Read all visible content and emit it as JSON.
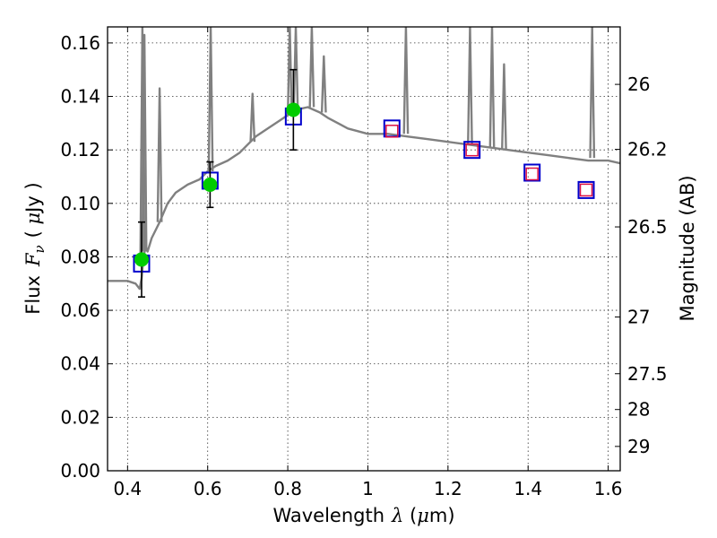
{
  "chart_data": {
    "type": "scatter",
    "title": "",
    "xlabel": {
      "prefix": "Wavelength",
      "symbol": "λ",
      "unit_open": " (",
      "unit_mu": "μ",
      "unit_rest": "m)"
    },
    "ylabel": {
      "prefix": "Flux",
      "symbol": "F",
      "subscript": "ν",
      "unit_open": "( ",
      "unit_mu": "μ",
      "unit_rest": "Jy )"
    },
    "y2label": "Magnitude (AB)",
    "xlim": [
      0.35,
      1.63
    ],
    "ylim": [
      0.0,
      0.166
    ],
    "x_ticks": [
      {
        "value": 0.4,
        "label": "0.4"
      },
      {
        "value": 0.6,
        "label": "0.6"
      },
      {
        "value": 0.8,
        "label": "0.8"
      },
      {
        "value": 1.0,
        "label": "1"
      },
      {
        "value": 1.2,
        "label": "1.2"
      },
      {
        "value": 1.4,
        "label": "1.4"
      },
      {
        "value": 1.6,
        "label": "1.6"
      }
    ],
    "y_ticks": [
      {
        "value": 0.0,
        "label": "0.00"
      },
      {
        "value": 0.02,
        "label": "0.02"
      },
      {
        "value": 0.04,
        "label": "0.04"
      },
      {
        "value": 0.06,
        "label": "0.06"
      },
      {
        "value": 0.08,
        "label": "0.08"
      },
      {
        "value": 0.1,
        "label": "0.10"
      },
      {
        "value": 0.12,
        "label": "0.12"
      },
      {
        "value": 0.14,
        "label": "0.14"
      },
      {
        "value": 0.16,
        "label": "0.16"
      }
    ],
    "mag_ticks": [
      {
        "label": "26",
        "flux": 0.1445
      },
      {
        "label": "26.2",
        "flux": 0.1202
      },
      {
        "label": "26.5",
        "flux": 0.0912
      },
      {
        "label": "27",
        "flux": 0.0575
      },
      {
        "label": "27.5",
        "flux": 0.0363
      },
      {
        "label": "28",
        "flux": 0.0229
      },
      {
        "label": "29",
        "flux": 0.0091
      }
    ],
    "grid": true,
    "colors": {
      "spectrum": "#808080",
      "observed": "#00cc00",
      "model_box": "#0000cc",
      "predicted": "#dd1144",
      "errorbar": "#000000"
    },
    "series": [
      {
        "name": "Model spectrum",
        "kind": "line",
        "x": [
          0.35,
          0.4,
          0.42,
          0.43,
          0.435,
          0.44,
          0.445,
          0.45,
          0.46,
          0.48,
          0.5,
          0.52,
          0.55,
          0.58,
          0.6,
          0.62,
          0.65,
          0.68,
          0.7,
          0.72,
          0.75,
          0.78,
          0.8,
          0.82,
          0.85,
          0.88,
          0.9,
          0.95,
          1.0,
          1.05,
          1.1,
          1.15,
          1.2,
          1.25,
          1.3,
          1.35,
          1.4,
          1.45,
          1.5,
          1.55,
          1.6,
          1.63
        ],
        "y": [
          0.071,
          0.071,
          0.07,
          0.068,
          0.072,
          0.08,
          0.084,
          0.082,
          0.087,
          0.093,
          0.1,
          0.104,
          0.107,
          0.109,
          0.112,
          0.114,
          0.116,
          0.119,
          0.122,
          0.125,
          0.128,
          0.131,
          0.133,
          0.135,
          0.136,
          0.134,
          0.132,
          0.128,
          0.126,
          0.126,
          0.125,
          0.124,
          0.123,
          0.122,
          0.121,
          0.12,
          0.119,
          0.118,
          0.117,
          0.116,
          0.116,
          0.115
        ]
      },
      {
        "name": "Emission lines",
        "kind": "spikes",
        "lines": [
          {
            "x": 0.437,
            "base": 0.08,
            "peak": 0.166
          },
          {
            "x": 0.442,
            "base": 0.082,
            "peak": 0.163
          },
          {
            "x": 0.48,
            "base": 0.093,
            "peak": 0.143
          },
          {
            "x": 0.6075,
            "base": 0.112,
            "peak": 0.166
          },
          {
            "x": 0.712,
            "base": 0.123,
            "peak": 0.141
          },
          {
            "x": 0.805,
            "base": 0.133,
            "peak": 0.166
          },
          {
            "x": 0.82,
            "base": 0.135,
            "peak": 0.166
          },
          {
            "x": 0.86,
            "base": 0.136,
            "peak": 0.166
          },
          {
            "x": 0.89,
            "base": 0.134,
            "peak": 0.155
          },
          {
            "x": 1.095,
            "base": 0.126,
            "peak": 0.166
          },
          {
            "x": 1.255,
            "base": 0.122,
            "peak": 0.166
          },
          {
            "x": 1.31,
            "base": 0.121,
            "peak": 0.166
          },
          {
            "x": 1.34,
            "base": 0.12,
            "peak": 0.152
          },
          {
            "x": 1.56,
            "base": 0.117,
            "peak": 0.166
          }
        ]
      },
      {
        "name": "Observed photometry",
        "kind": "points",
        "x": [
          0.435,
          0.606,
          0.814
        ],
        "y": [
          0.079,
          0.107,
          0.135
        ],
        "yerr": [
          0.014,
          0.0085,
          0.015
        ]
      },
      {
        "name": "Model fluxes",
        "kind": "boxes",
        "x": [
          0.435,
          0.606,
          0.814,
          1.06,
          1.26,
          1.41,
          1.545
        ],
        "y": [
          0.0775,
          0.1085,
          0.1325,
          0.128,
          0.12,
          0.1115,
          0.105
        ]
      },
      {
        "name": "Predicted fluxes",
        "kind": "small-boxes",
        "x": [
          1.06,
          1.26,
          1.41,
          1.545
        ],
        "y": [
          0.127,
          0.12,
          0.111,
          0.105
        ]
      }
    ]
  }
}
